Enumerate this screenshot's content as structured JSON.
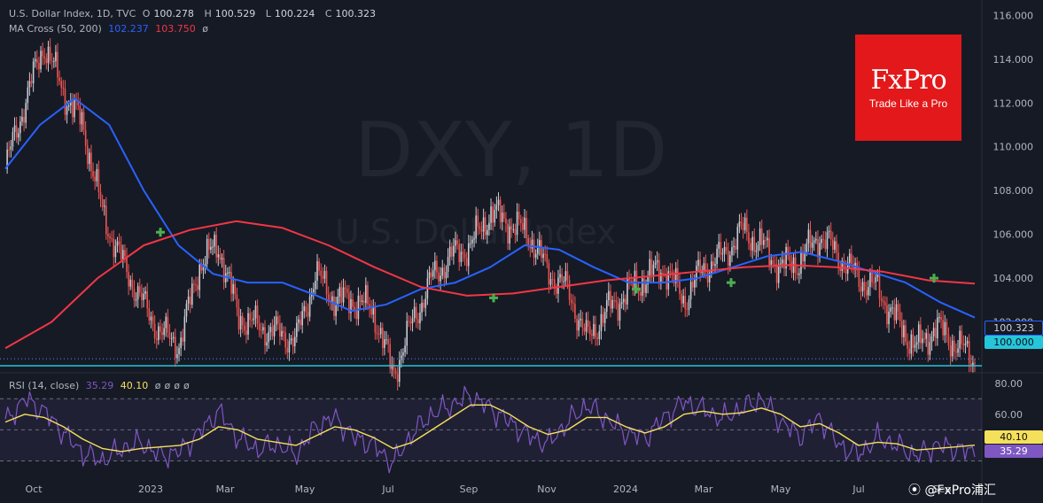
{
  "header": {
    "symbol": "U.S. Dollar Index, 1D, TVC",
    "ohlc": [
      {
        "k": "O",
        "v": "100.278"
      },
      {
        "k": "H",
        "v": "100.529"
      },
      {
        "k": "L",
        "v": "100.224"
      },
      {
        "k": "C",
        "v": "100.323"
      }
    ],
    "ma_label": "MA Cross (50, 200)",
    "ma_fast": "102.237",
    "ma_slow": "103.750",
    "ma_null": "ø"
  },
  "rsi_header": {
    "label": "RSI (14, close)",
    "rsi": "35.29",
    "ma": "40.10",
    "nulls": [
      "ø",
      "ø",
      "ø",
      "ø"
    ]
  },
  "watermark": {
    "big": "DXY, 1D",
    "small": "U.S. Dollar Index"
  },
  "logo": {
    "main": "FxPro",
    "sub": "Trade Like a Pro"
  },
  "credit": "@FxPro浦汇",
  "colors": {
    "bg": "#161a25",
    "up": "#c9cbd1",
    "down": "#ef5350",
    "ma_fast": "#2962ff",
    "ma_slow": "#f23645",
    "rsi": "#7e57c2",
    "rsi_ma": "#f5e05c",
    "cross": "#4caf50",
    "support": "#26c6da"
  },
  "chart_data": [
    {
      "type": "candlestick",
      "title": "U.S. Dollar Index, 1D, TVC",
      "ylim": [
        99.8,
        116.5
      ],
      "yticks": [
        "116.000",
        "114.000",
        "112.000",
        "110.000",
        "108.000",
        "106.000",
        "104.000",
        "102.000"
      ],
      "xticks": [
        "Oct",
        "2023",
        "Mar",
        "May",
        "Jul",
        "Sep",
        "Nov",
        "2024",
        "Mar",
        "May",
        "Jul",
        "Sep"
      ],
      "close_path": [
        {
          "x": "Sep 2022",
          "y": 109.0
        },
        {
          "x": "early Oct",
          "y": 112.0
        },
        {
          "x": "late Sep 2022",
          "y": 114.7
        },
        {
          "x": "mid Oct",
          "y": 112.5
        },
        {
          "x": "early Nov",
          "y": 111.0
        },
        {
          "x": "mid Nov",
          "y": 107.0
        },
        {
          "x": "Dec",
          "y": 104.8
        },
        {
          "x": "Jan 2023",
          "y": 103.0
        },
        {
          "x": "late Jan",
          "y": 101.5
        },
        {
          "x": "early Feb",
          "y": 101.0
        },
        {
          "x": "late Feb",
          "y": 104.6
        },
        {
          "x": "Mar",
          "y": 105.5
        },
        {
          "x": "late Mar",
          "y": 102.3
        },
        {
          "x": "Apr",
          "y": 101.8
        },
        {
          "x": "late Apr",
          "y": 101.5
        },
        {
          "x": "May",
          "y": 101.2
        },
        {
          "x": "late May",
          "y": 104.2
        },
        {
          "x": "Jun",
          "y": 103.0
        },
        {
          "x": "late Jun",
          "y": 103.0
        },
        {
          "x": "Jul",
          "y": 102.5
        },
        {
          "x": "mid Jul",
          "y": 99.6
        },
        {
          "x": "Aug",
          "y": 102.0
        },
        {
          "x": "late Aug",
          "y": 104.0
        },
        {
          "x": "early Sep",
          "y": 105.0
        },
        {
          "x": "Sep",
          "y": 105.5
        },
        {
          "x": "Oct",
          "y": 107.0
        },
        {
          "x": "late Oct",
          "y": 106.5
        },
        {
          "x": "Nov",
          "y": 106.0
        },
        {
          "x": "mid Nov",
          "y": 104.3
        },
        {
          "x": "Dec",
          "y": 103.5
        },
        {
          "x": "late Dec",
          "y": 101.2
        },
        {
          "x": "Jan 2024",
          "y": 102.5
        },
        {
          "x": "late Jan",
          "y": 103.3
        },
        {
          "x": "Feb",
          "y": 104.0
        },
        {
          "x": "mid Feb",
          "y": 104.5
        },
        {
          "x": "Mar",
          "y": 103.0
        },
        {
          "x": "late Mar",
          "y": 104.5
        },
        {
          "x": "Apr",
          "y": 105.0
        },
        {
          "x": "mid Apr",
          "y": 106.2
        },
        {
          "x": "May",
          "y": 105.5
        },
        {
          "x": "mid May",
          "y": 104.5
        },
        {
          "x": "Jun",
          "y": 104.8
        },
        {
          "x": "late Jun",
          "y": 106.0
        },
        {
          "x": "Jul",
          "y": 105.0
        },
        {
          "x": "mid Jul",
          "y": 104.0
        },
        {
          "x": "Aug",
          "y": 103.5
        },
        {
          "x": "mid Aug",
          "y": 102.0
        },
        {
          "x": "late Aug",
          "y": 100.8
        },
        {
          "x": "Sep",
          "y": 101.8
        },
        {
          "x": "mid Sep",
          "y": 101.0
        },
        {
          "x": "late Sep",
          "y": 100.3
        }
      ],
      "series": [
        {
          "name": "MA Cross (50, 200)",
          "label": "102.237",
          "values": [
            109,
            111,
            112.2,
            111,
            108,
            105.5,
            104.2,
            103.8,
            103.8,
            103.2,
            102.5,
            102.8,
            103.5,
            103.8,
            104.5,
            105.5,
            105.3,
            104.5,
            103.8,
            103.8,
            104.0,
            104.5,
            105.0,
            105.2,
            104.8,
            104.3,
            103.8,
            102.9,
            102.2
          ]
        },
        {
          "name": "MA Cross (50, 200)",
          "label": "103.750",
          "values": [
            100.8,
            102.0,
            104.0,
            105.5,
            106.2,
            106.6,
            106.3,
            105.5,
            104.5,
            103.6,
            103.2,
            103.3,
            103.6,
            103.9,
            104.1,
            104.3,
            104.5,
            104.6,
            104.5,
            104.3,
            103.9,
            103.75
          ]
        }
      ],
      "crosses": [
        "Jan 2023",
        "Sep 2023",
        "Jan 2024",
        "Mar 2024",
        "Sep 2024"
      ],
      "horizontal_lines": [
        "100.000",
        "100.323"
      ]
    },
    {
      "type": "line",
      "title": "RSI (14, close)",
      "ylim": [
        20,
        85
      ],
      "yticks": [
        "80.00",
        "60.00"
      ],
      "bands": [
        70,
        50,
        30
      ],
      "series": [
        {
          "name": "RSI",
          "label": "35.29",
          "values": [
            55,
            70,
            62,
            48,
            35,
            30,
            38,
            42,
            33,
            36,
            48,
            62,
            45,
            37,
            41,
            34,
            52,
            58,
            45,
            40,
            28,
            48,
            60,
            66,
            72,
            64,
            55,
            46,
            41,
            55,
            66,
            57,
            48,
            45,
            58,
            68,
            63,
            57,
            64,
            70,
            55,
            46,
            58,
            40,
            34,
            45,
            40,
            33,
            40,
            38,
            35.29
          ]
        },
        {
          "name": "MA",
          "label": "40.10",
          "values": [
            55,
            60,
            58,
            52,
            44,
            38,
            36,
            38,
            39,
            40,
            44,
            52,
            50,
            44,
            42,
            40,
            46,
            52,
            50,
            45,
            38,
            42,
            50,
            58,
            66,
            66,
            60,
            52,
            47,
            50,
            58,
            58,
            52,
            48,
            52,
            60,
            62,
            60,
            61,
            64,
            60,
            52,
            54,
            48,
            40,
            42,
            41,
            37,
            38,
            39,
            40.1
          ]
        }
      ]
    }
  ]
}
